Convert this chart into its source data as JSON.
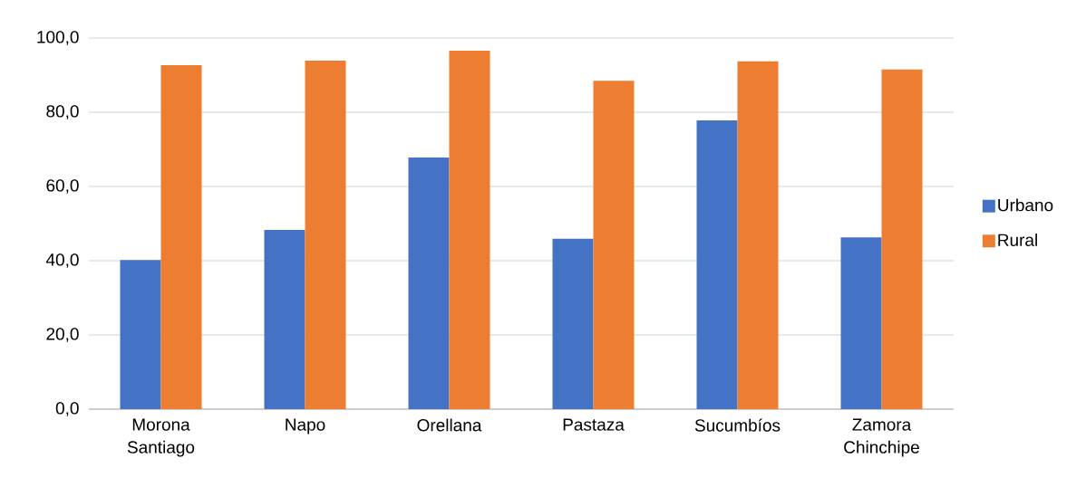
{
  "chart_data": {
    "type": "bar",
    "categories": [
      "Morona Santiago",
      "Napo",
      "Orellana",
      "Pastaza",
      "Sucumbíos",
      "Zamora Chinchipe"
    ],
    "series": [
      {
        "name": "Urbano",
        "color": "#4472c4",
        "values": [
          40.2,
          48.3,
          67.8,
          45.9,
          77.8,
          46.3
        ]
      },
      {
        "name": "Rural",
        "color": "#ed7d31",
        "values": [
          92.7,
          93.9,
          96.6,
          88.5,
          93.7,
          91.5
        ]
      }
    ],
    "ylim": [
      0,
      100
    ],
    "yticks": [
      {
        "value": 0,
        "label": "0,0"
      },
      {
        "value": 20,
        "label": "20,0"
      },
      {
        "value": 40,
        "label": "40,0"
      },
      {
        "value": 60,
        "label": "60,0"
      },
      {
        "value": 80,
        "label": "80,0"
      },
      {
        "value": 100,
        "label": "100,0"
      }
    ],
    "grid": "y",
    "legend": "right"
  }
}
